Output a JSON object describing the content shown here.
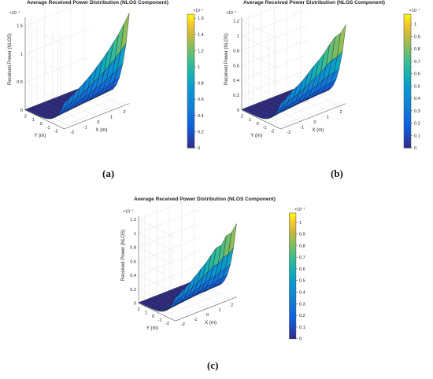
{
  "chart_data": [
    {
      "panel": "a",
      "caption": "(a)",
      "type": "surface3d",
      "title": "Average Received Power Distribution (NLOS Component)",
      "xlabel": "X (m)",
      "ylabel": "Y (m)",
      "zlabel": "Received Power (NLOS)",
      "z_exponent": "×10⁻⁷",
      "x_ticks": [
        "-2",
        "-1",
        "0",
        "1",
        "2"
      ],
      "y_ticks": [
        "2",
        "1",
        "0",
        "-1",
        "-2"
      ],
      "z_ticks": [
        "0",
        "0.5",
        "1",
        "1.5"
      ],
      "zlim": [
        0,
        1.65
      ],
      "colorbar": {
        "ticks": [
          "0",
          "0.2",
          "0.4",
          "0.6",
          "0.8",
          "1",
          "1.2",
          "1.4",
          "1.6"
        ],
        "range": [
          0,
          1.65
        ]
      },
      "x_range": [
        -2.5,
        2.5
      ],
      "y_range": [
        -2.5,
        2.5
      ],
      "grid_size": 13,
      "edge_profile": [
        0.82,
        0.86,
        0.9,
        0.95,
        1.0,
        1.05,
        1.12,
        1.18,
        1.25,
        1.33,
        1.4,
        1.5,
        1.6
      ],
      "grid": "on"
    },
    {
      "panel": "b",
      "caption": "(b)",
      "type": "surface3d",
      "title": "Average Received Power Distribution (NLOS Component)",
      "xlabel": "X (m)",
      "ylabel": "Y (m)",
      "zlabel": "Received Power (NLOS)",
      "z_exponent": "×10⁻⁷",
      "x_ticks": [
        "-2",
        "-1",
        "0",
        "1",
        "2"
      ],
      "y_ticks": [
        "2",
        "1",
        "0",
        "-1",
        "-2"
      ],
      "z_ticks": [
        "0",
        "0.2",
        "0.4",
        "0.6",
        "0.8",
        "1",
        "1.2"
      ],
      "zlim": [
        0,
        1.25
      ],
      "colorbar": {
        "ticks": [
          "0",
          "0.1",
          "0.2",
          "0.3",
          "0.4",
          "0.5",
          "0.6",
          "0.7",
          "0.8",
          "0.9",
          "1"
        ],
        "range": [
          0,
          1.08
        ]
      },
      "x_range": [
        -2.5,
        2.5
      ],
      "y_range": [
        -2.5,
        2.5
      ],
      "grid_size": 13,
      "edge_profile": [
        0.6,
        0.64,
        0.7,
        0.72,
        0.75,
        0.8,
        0.85,
        0.88,
        0.92,
        0.98,
        1.02,
        1.0,
        1.05
      ],
      "grid": "on"
    },
    {
      "panel": "c",
      "caption": "(c)",
      "type": "surface3d",
      "title": "Average Received Power Distribution (NLOS Component)",
      "xlabel": "X (m)",
      "ylabel": "Y (m)",
      "zlabel": "Received Power (NLOS)",
      "z_exponent": "×10⁻⁷",
      "x_ticks": [
        "-2",
        "-1",
        "0",
        "1",
        "2"
      ],
      "y_ticks": [
        "2",
        "1",
        "0",
        "-1",
        "-2"
      ],
      "z_ticks": [
        "0",
        "0.2",
        "0.4",
        "0.6",
        "0.8",
        "1",
        "1.2"
      ],
      "zlim": [
        0,
        1.25
      ],
      "colorbar": {
        "ticks": [
          "0",
          "0.1",
          "0.2",
          "0.3",
          "0.4",
          "0.5",
          "0.6",
          "0.7",
          "0.8",
          "0.9",
          "1"
        ],
        "range": [
          0,
          1.08
        ]
      },
      "x_range": [
        -2.5,
        2.5
      ],
      "y_range": [
        -2.5,
        2.5
      ],
      "grid_size": 13,
      "edge_profile": [
        0.58,
        0.62,
        0.66,
        0.7,
        0.75,
        0.8,
        0.84,
        0.9,
        0.95,
        0.92,
        1.0,
        0.98,
        1.04
      ],
      "grid": "on"
    }
  ]
}
